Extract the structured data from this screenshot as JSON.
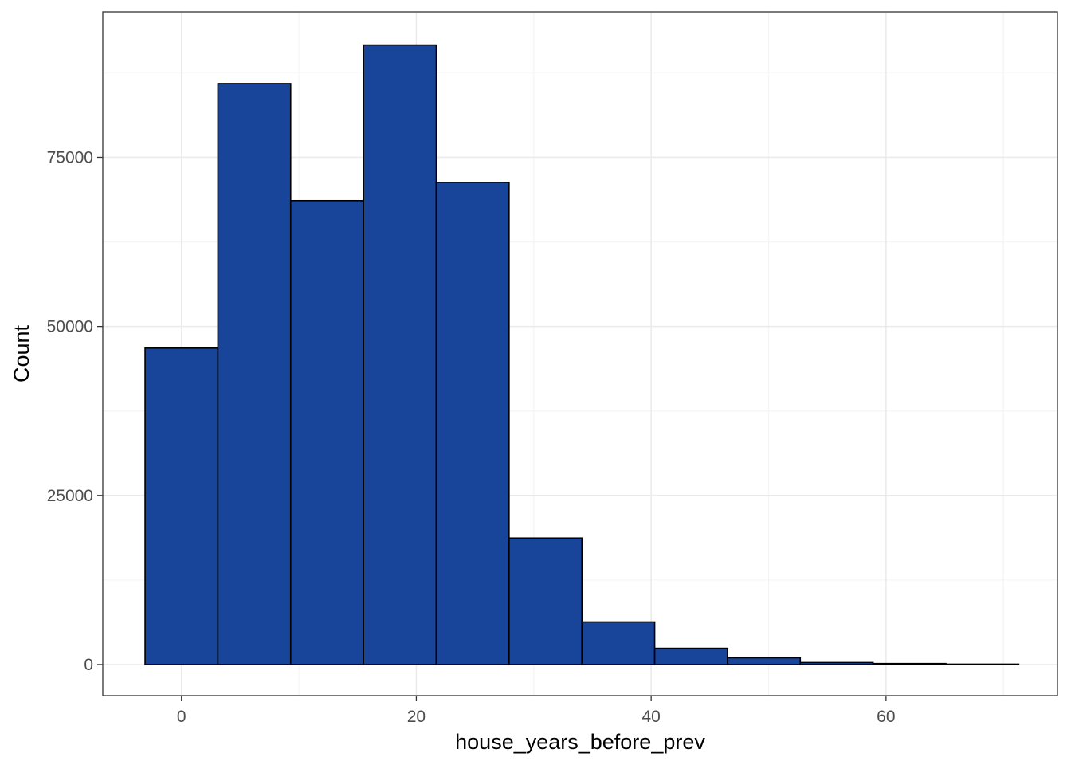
{
  "chart_data": {
    "type": "bar",
    "variant": "histogram",
    "xlabel": "house_years_before_prev",
    "ylabel": "Count",
    "xlim": [
      -6.7,
      74.6
    ],
    "ylim": [
      -4600,
      96500
    ],
    "x_ticks": [
      0,
      20,
      40,
      60
    ],
    "x_tick_labels": [
      "0",
      "20",
      "40",
      "60"
    ],
    "y_ticks": [
      0,
      25000,
      50000,
      75000
    ],
    "y_tick_labels": [
      "0",
      "25000",
      "50000",
      "75000"
    ],
    "x_minor_grid": [
      10,
      30,
      50,
      70
    ],
    "y_minor_grid": [
      12500,
      37500,
      62500,
      87500
    ],
    "bin_width": 6.2,
    "bins": [
      {
        "x0": -3.1,
        "x1": 3.1,
        "count": 46800
      },
      {
        "x0": 3.1,
        "x1": 9.3,
        "count": 85900
      },
      {
        "x0": 9.3,
        "x1": 15.5,
        "count": 68600
      },
      {
        "x0": 15.5,
        "x1": 21.7,
        "count": 91600
      },
      {
        "x0": 21.7,
        "x1": 27.9,
        "count": 71300
      },
      {
        "x0": 27.9,
        "x1": 34.1,
        "count": 18700
      },
      {
        "x0": 34.1,
        "x1": 40.3,
        "count": 6300
      },
      {
        "x0": 40.3,
        "x1": 46.5,
        "count": 2400
      },
      {
        "x0": 46.5,
        "x1": 52.7,
        "count": 1000
      },
      {
        "x0": 52.7,
        "x1": 58.9,
        "count": 300
      },
      {
        "x0": 58.9,
        "x1": 65.1,
        "count": 150
      },
      {
        "x0": 65.1,
        "x1": 71.3,
        "count": 60
      }
    ],
    "grid": true,
    "theme": "bw",
    "legend": "none",
    "colors": {
      "bar_fill": "#184499",
      "bar_stroke": "#000000",
      "panel_border": "#333333",
      "grid_major": "#ebebeb",
      "grid_minor": "#f5f5f5",
      "tick_text": "#4d4d4d",
      "axis_title": "#000000"
    }
  }
}
